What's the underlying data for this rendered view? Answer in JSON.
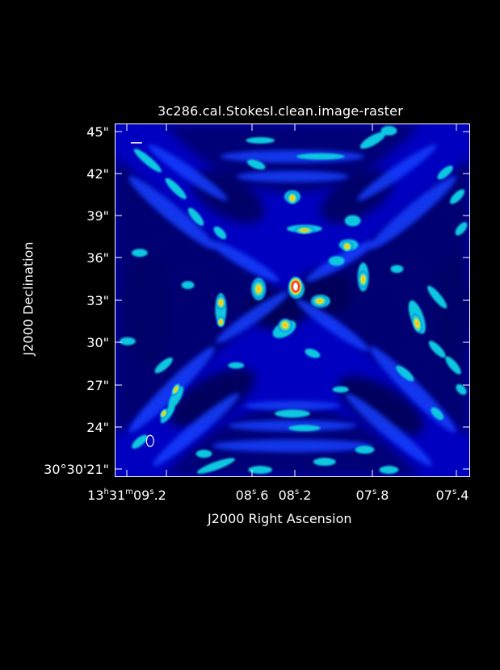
{
  "viewer": {
    "title": "3c286.cal.StokesI.clean.image-raster"
  },
  "axes": {
    "y_title": "J2000 Declination",
    "x_title": "J2000 Right Ascension",
    "y_ticks": [
      {
        "label": "45\"",
        "value": 45
      },
      {
        "label": "42\"",
        "value": 42
      },
      {
        "label": "39\"",
        "value": 39
      },
      {
        "label": "36\"",
        "value": 36
      },
      {
        "label": "33\"",
        "value": 33
      },
      {
        "label": "30\"",
        "value": 30
      },
      {
        "label": "27\"",
        "value": 27
      },
      {
        "label": "24\"",
        "value": 24
      }
    ],
    "y_first_tick": {
      "main": "30°30'21\"",
      "value": 21
    },
    "x_ticks": [
      {
        "label_pre": "13",
        "sup1": "h",
        "label_mid": "31",
        "sup2": "m",
        "label_post": "09",
        "sup3": "s",
        "label_end": ".2",
        "value": 9.2
      },
      {
        "label_pre": "",
        "sup1": "",
        "label_mid": "",
        "sup2": "",
        "label_post": "08",
        "sup3": "s",
        "label_end": ".6",
        "value": 8.6
      },
      {
        "label_pre": "",
        "sup1": "",
        "label_mid": "",
        "sup2": "",
        "label_post": "08",
        "sup3": "s",
        "label_end": ".2",
        "value": 8.2
      },
      {
        "label_pre": "",
        "sup1": "",
        "label_mid": "",
        "sup2": "",
        "label_post": "07",
        "sup3": "s",
        "label_end": ".8",
        "value": 7.8
      },
      {
        "label_pre": "",
        "sup1": "",
        "label_mid": "",
        "sup2": "",
        "label_post": "07",
        "sup3": "s",
        "label_end": ".4",
        "value": 7.4
      }
    ]
  },
  "colors": {
    "background": "#000000",
    "raster_base": "#0000b8",
    "raster_deep": "#000050",
    "raster_mid": "#1030ff",
    "raster_cyan": "#10d0e0",
    "raster_yellow": "#f0e020",
    "raster_red": "#ff2020",
    "frame": "#ffffff"
  }
}
